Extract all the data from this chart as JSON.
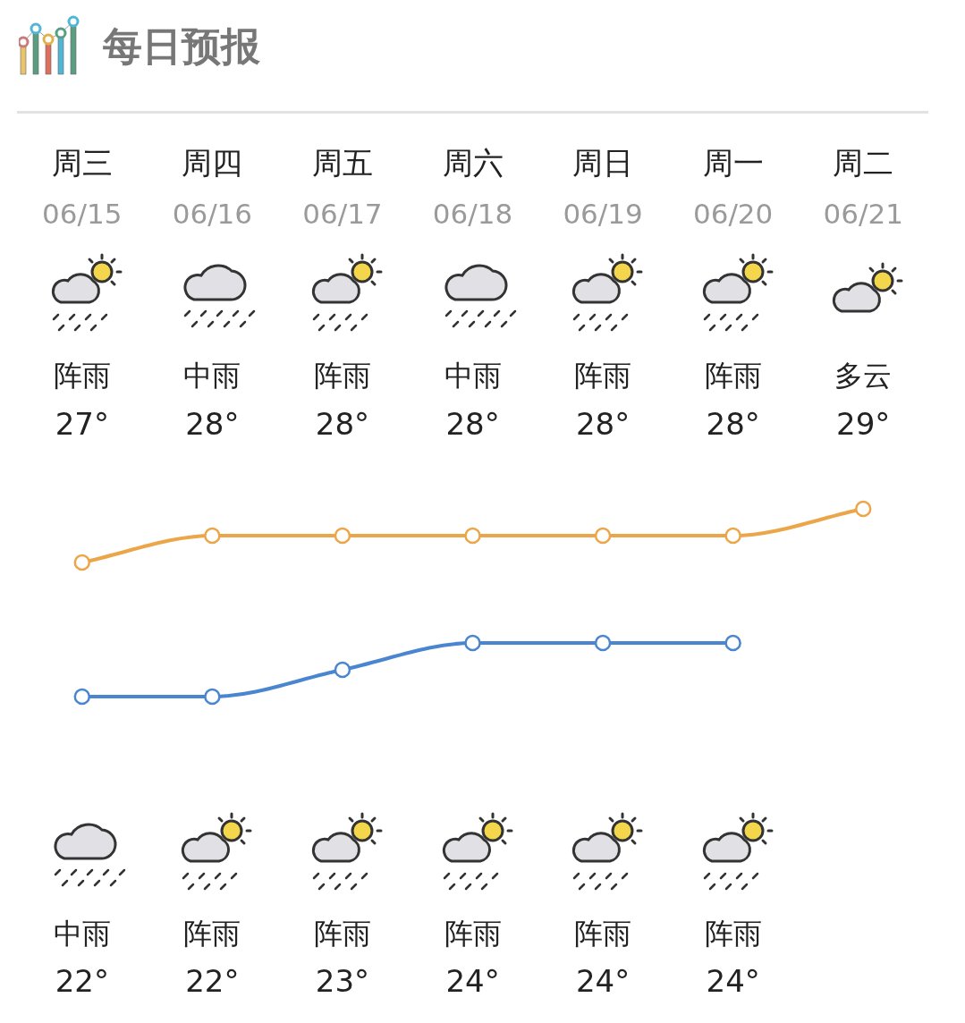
{
  "chart_data": {
    "type": "line",
    "title": "每日预报",
    "categories": [
      "周三\n06/15",
      "周四\n06/16",
      "周五\n06/17",
      "周六\n06/18",
      "周日\n06/19",
      "周一\n06/20",
      "周二\n06/21"
    ],
    "series": [
      {
        "color": "#eba64a",
        "values": [
          27,
          28,
          28,
          28,
          28,
          28,
          29
        ],
        "value_labels": [
          "27°",
          "28°",
          "28°",
          "28°",
          "28°",
          "28°",
          "29°"
        ]
      },
      {
        "color": "#4a86d0",
        "values": [
          22,
          22,
          23,
          24,
          24,
          24,
          null
        ],
        "value_labels": [
          "22°",
          "22°",
          "23°",
          "24°",
          "24°",
          "24°",
          null
        ]
      }
    ],
    "annotations": [
      "阵雨",
      "中雨",
      "阵雨",
      "中雨",
      "阵雨",
      "阵雨",
      "多云",
      "中雨",
      "阵雨",
      "阵雨",
      "阵雨",
      "阵雨",
      "阵雨"
    ],
    "marker": "circle",
    "line_style": "solid"
  }
}
